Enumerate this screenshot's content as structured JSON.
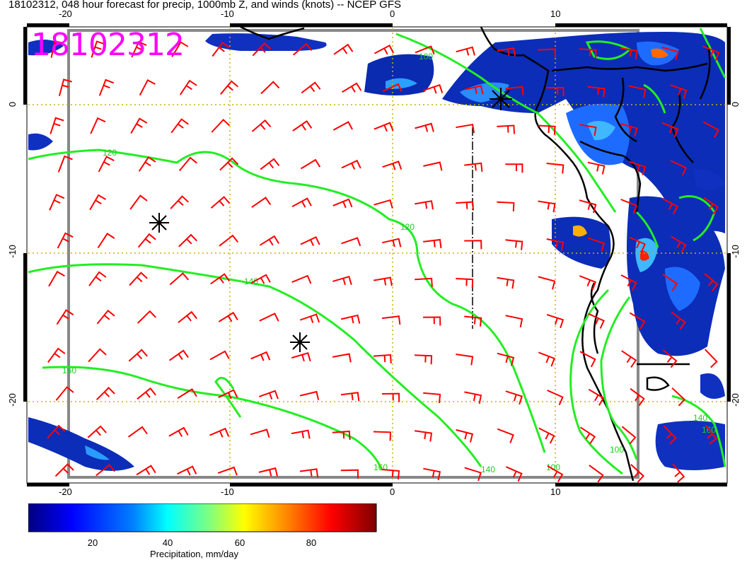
{
  "title": "18102312, 048 hour forecast for precip, 1000mb Z, and winds (knots) -- NCEP GFS",
  "stamp": "18102312",
  "axes": {
    "top": [
      "-20",
      "-10",
      "0",
      "10"
    ],
    "bottom": [
      "-20",
      "-10",
      "0",
      "10"
    ],
    "left": [
      "0",
      "-10",
      "-20"
    ],
    "right": [
      "0",
      "-10",
      "-20"
    ]
  },
  "contour_labels": [
    "100",
    "120",
    "140",
    "160",
    "120",
    "140",
    "160",
    "100",
    "160",
    "100",
    "140"
  ],
  "colorbar": {
    "title": "Precipitation, mm/day",
    "ticks": [
      "20",
      "40",
      "60",
      "80"
    ],
    "colors": [
      "#00007f",
      "#0000ff",
      "#007fff",
      "#00ffff",
      "#7fff7f",
      "#ffff00",
      "#ff7f00",
      "#ff0000",
      "#7f0000"
    ]
  },
  "colors": {
    "wind_barbs": "#ff0000",
    "contours": "#00dd00",
    "gridlines": "#c8b400",
    "stamp": "#ff00ff"
  }
}
